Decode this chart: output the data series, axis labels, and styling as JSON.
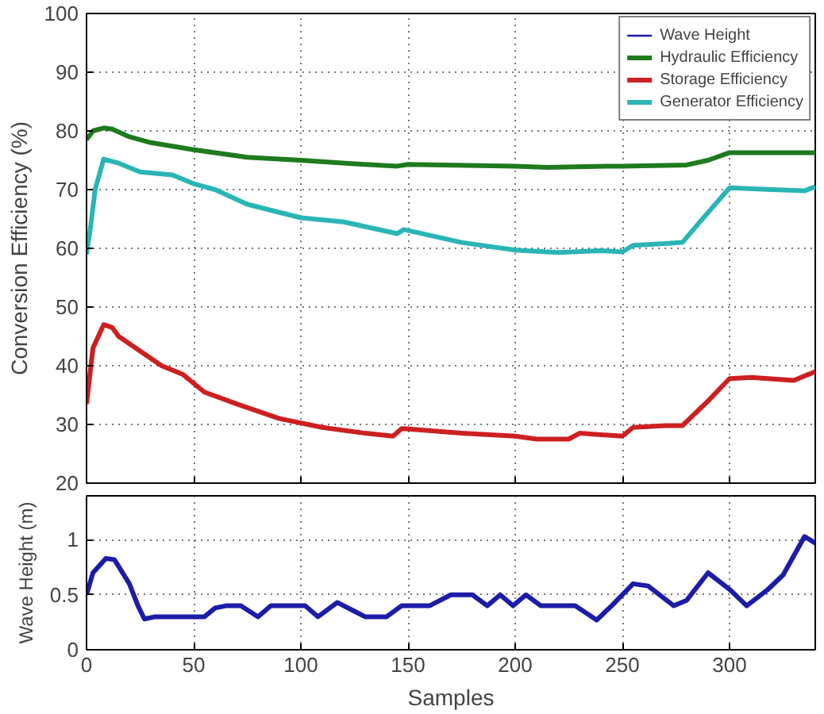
{
  "chart_data": [
    {
      "type": "line",
      "ylabel": "Conversion Efficiency (%)",
      "xlim": [
        0,
        340
      ],
      "ylim": [
        20,
        100
      ],
      "xticks": [
        0,
        50,
        100,
        150,
        200,
        250,
        300
      ],
      "yticks": [
        20,
        30,
        40,
        50,
        60,
        70,
        80,
        90,
        100
      ],
      "grid": true,
      "legend": "top right",
      "tick_labels": "y",
      "line_style": "solid",
      "series": [
        {
          "name": "Hydraulic Efficiency",
          "color": "#1e7a1e",
          "x": [
            0,
            3,
            8,
            12,
            20,
            30,
            50,
            75,
            100,
            125,
            145,
            150,
            200,
            215,
            245,
            250,
            280,
            290,
            300,
            340
          ],
          "values": [
            78.5,
            80,
            80.5,
            80.3,
            79,
            78,
            76.8,
            75.5,
            75,
            74.4,
            74,
            74.3,
            74,
            73.8,
            74,
            74,
            74.2,
            75,
            76.3,
            76.3
          ]
        },
        {
          "name": "Storage Efficiency",
          "color": "#cc2020",
          "x": [
            0,
            3,
            8,
            12,
            15,
            25,
            35,
            45,
            55,
            70,
            90,
            110,
            130,
            143,
            147,
            175,
            200,
            210,
            225,
            230,
            250,
            255,
            270,
            278,
            290,
            300,
            310,
            330,
            340
          ],
          "values": [
            33.5,
            43,
            47,
            46.5,
            45,
            42.5,
            40,
            38.5,
            35.5,
            33.5,
            31,
            29.5,
            28.5,
            28,
            29.3,
            28.5,
            28,
            27.5,
            27.5,
            28.5,
            28,
            29.5,
            29.8,
            29.8,
            34,
            37.8,
            38,
            37.5,
            39
          ]
        },
        {
          "name": "Generator Efficiency",
          "color": "#2ab5b5",
          "x": [
            0,
            2,
            4,
            8,
            15,
            25,
            40,
            50,
            60,
            75,
            100,
            120,
            145,
            148,
            175,
            200,
            220,
            240,
            250,
            255,
            270,
            278,
            285,
            300,
            320,
            335,
            340
          ],
          "values": [
            59,
            64,
            70,
            75.2,
            74.5,
            73,
            72.5,
            71,
            70,
            67.5,
            65.2,
            64.5,
            62.5,
            63.2,
            61,
            59.7,
            59.3,
            59.6,
            59.4,
            60.5,
            60.8,
            61,
            64,
            70.3,
            70,
            69.8,
            70.5
          ]
        }
      ]
    },
    {
      "type": "line",
      "xlabel": "Samples",
      "ylabel": "Wave Height (m)",
      "xlim": [
        0,
        340
      ],
      "ylim": [
        0,
        1.4
      ],
      "xticks": [
        0,
        50,
        100,
        150,
        200,
        250,
        300
      ],
      "yticks": [
        0,
        0.5,
        1
      ],
      "grid": true,
      "line_style": "solid",
      "series": [
        {
          "name": "Wave Height",
          "color": "#1c1ca8",
          "x": [
            0,
            3,
            9,
            13,
            20,
            24,
            27,
            32,
            40,
            50,
            55,
            60,
            65,
            72,
            80,
            86,
            95,
            102,
            108,
            117,
            125,
            130,
            140,
            147,
            160,
            170,
            180,
            187,
            193,
            199,
            205,
            212,
            228,
            238,
            245,
            255,
            262,
            274,
            280,
            290,
            300,
            308,
            318,
            325,
            335,
            340
          ],
          "values": [
            0.5,
            0.7,
            0.83,
            0.82,
            0.6,
            0.4,
            0.28,
            0.3,
            0.3,
            0.3,
            0.3,
            0.38,
            0.4,
            0.4,
            0.3,
            0.4,
            0.4,
            0.4,
            0.3,
            0.43,
            0.35,
            0.3,
            0.3,
            0.4,
            0.4,
            0.5,
            0.5,
            0.4,
            0.5,
            0.4,
            0.5,
            0.4,
            0.4,
            0.27,
            0.4,
            0.6,
            0.58,
            0.4,
            0.45,
            0.7,
            0.55,
            0.4,
            0.55,
            0.68,
            1.03,
            0.97
          ]
        }
      ]
    }
  ]
}
